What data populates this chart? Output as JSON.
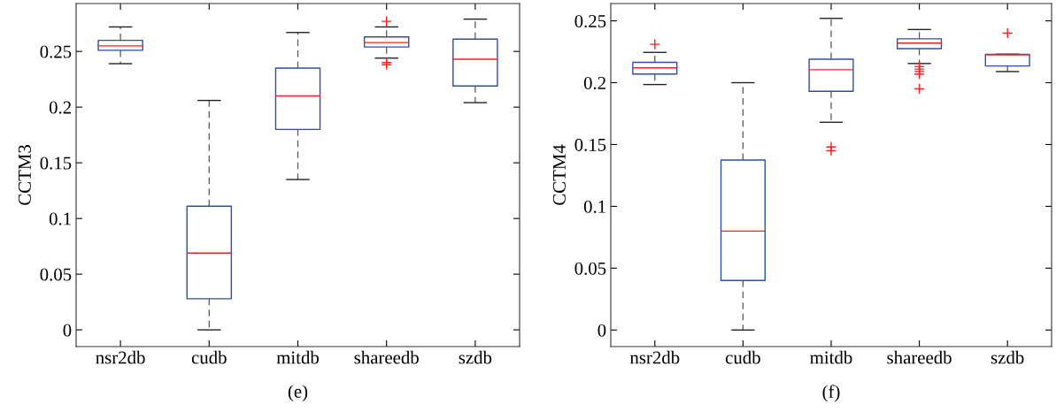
{
  "chart_data": [
    {
      "type": "box",
      "xlabel": "(e)",
      "ylabel": "CCTM3",
      "categories": [
        "nsr2db",
        "cudb",
        "mitdb",
        "shareedb",
        "szdb"
      ],
      "ylim": [
        -0.015,
        0.293
      ],
      "yticks": [
        0,
        0.05,
        0.1,
        0.15,
        0.2,
        0.25
      ],
      "grid": false,
      "marker": "cross",
      "series": [
        {
          "color": "#2e4fa8",
          "boxes": [
            {
              "low": 0.239,
              "q1": 0.251,
              "median": 0.255,
              "q3": 0.26,
              "high": 0.272
            },
            {
              "low": 0,
              "q1": 0.028,
              "median": 0.069,
              "q3": 0.111,
              "high": 0.206
            },
            {
              "low": 0.135,
              "q1": 0.18,
              "median": 0.21,
              "q3": 0.235,
              "high": 0.267
            },
            {
              "low": 0.244,
              "q1": 0.254,
              "median": 0.258,
              "q3": 0.263,
              "high": 0.272,
              "outliers": [
                0.277,
                0.24,
                0.238
              ]
            },
            {
              "low": 0.204,
              "q1": 0.219,
              "median": 0.243,
              "q3": 0.261,
              "high": 0.279
            }
          ]
        }
      ]
    },
    {
      "type": "box",
      "xlabel": "(f)",
      "ylabel": "CCTM4",
      "categories": [
        "nsr2db",
        "cudb",
        "mitdb",
        "shareedb",
        "szdb"
      ],
      "ylim": [
        -0.0134,
        0.264
      ],
      "yticks": [
        0,
        0.05,
        0.1,
        0.15,
        0.2,
        0.25
      ],
      "grid": false,
      "marker": "cross",
      "series": [
        {
          "color": "#2e4fa8",
          "boxes": [
            {
              "low": 0.1985,
              "q1": 0.207,
              "median": 0.212,
              "q3": 0.2165,
              "high": 0.2245,
              "outliers": [
                0.231
              ]
            },
            {
              "low": 0,
              "q1": 0.04,
              "median": 0.08,
              "q3": 0.1375,
              "high": 0.2
            },
            {
              "low": 0.168,
              "q1": 0.193,
              "median": 0.2105,
              "q3": 0.219,
              "high": 0.252,
              "outliers": [
                0.148,
                0.145
              ]
            },
            {
              "low": 0.2155,
              "q1": 0.2275,
              "median": 0.232,
              "q3": 0.2355,
              "high": 0.243,
              "outliers": [
                0.213,
                0.211,
                0.209,
                0.207,
                0.195
              ]
            },
            {
              "low": 0.209,
              "q1": 0.2135,
              "median": 0.2225,
              "q3": 0.223,
              "high": 0.223,
              "outliers": [
                0.24
              ]
            }
          ]
        }
      ]
    }
  ]
}
